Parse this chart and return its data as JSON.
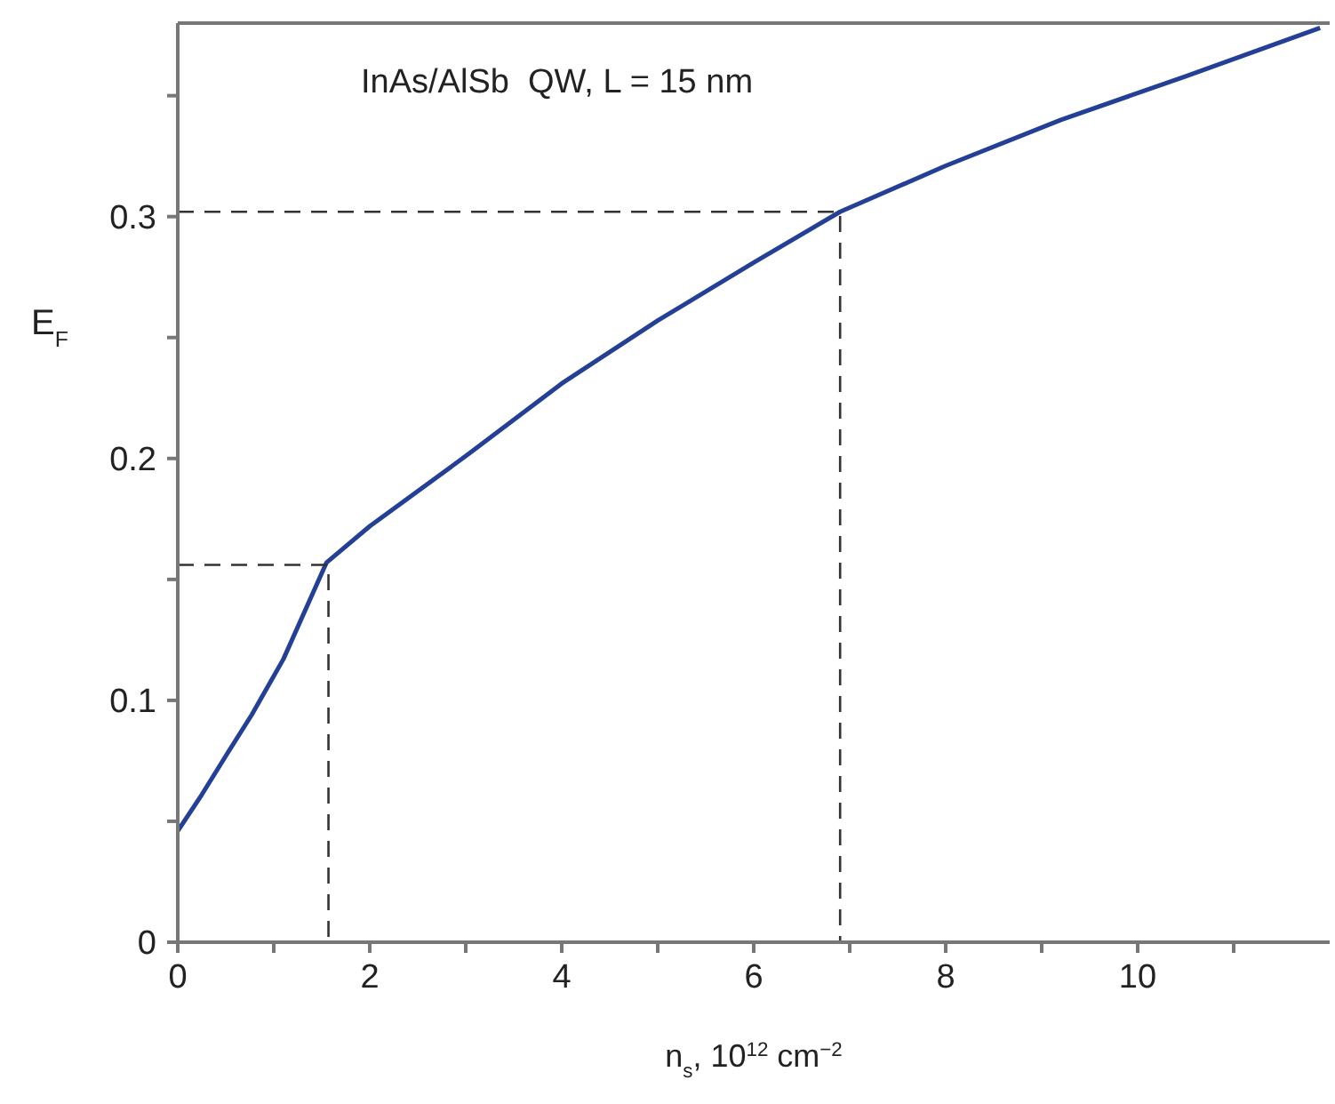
{
  "chart_data": {
    "type": "line",
    "xlabel": "n$_{s}$, 10$^{12}$ cm$^{−2}$",
    "ylabel": "E$_{F}$",
    "annotations": [
      "InAs/AlSb  QW, L = 15 nm"
    ],
    "xlim": [
      0,
      12
    ],
    "xticks": [
      0,
      2,
      4,
      6,
      8,
      10,
      {
        "value": 1,
        "label": null
      },
      {
        "value": 3,
        "label": null
      },
      {
        "value": 5,
        "label": null
      },
      {
        "value": 7,
        "label": null
      },
      {
        "value": 9,
        "label": null
      },
      {
        "value": 11,
        "label": null
      }
    ],
    "ylim": [
      0,
      0.38
    ],
    "yticks": [
      0,
      0.1,
      0.2,
      0.3,
      {
        "value": 0.05,
        "label": null
      },
      {
        "value": 0.15,
        "label": null
      },
      {
        "value": 0.25,
        "label": null
      },
      {
        "value": 0.35,
        "label": null
      }
    ],
    "grid": false,
    "marker": "none",
    "series": [
      {
        "color": "#233f96",
        "line_style": "solid",
        "x": [
          0,
          0.25,
          0.5,
          0.77,
          1.1,
          1.55,
          2,
          3,
          4,
          5,
          6,
          6.9,
          8,
          9.2,
          10.5,
          11.9
        ],
        "values": [
          0.046,
          0.061,
          0.077,
          0.094,
          0.117,
          0.157,
          0.172,
          0.201,
          0.231,
          0.257,
          0.281,
          0.302,
          0.321,
          0.34,
          0.358,
          0.378
        ]
      },
      {
        "color": "#333333",
        "line_style": "dashed",
        "x": [
          0,
          1.57,
          1.57
        ],
        "values": [
          0.156,
          0.156,
          0
        ]
      },
      {
        "color": "#333333",
        "line_style": "dashed",
        "x": [
          0,
          6.9,
          6.9
        ],
        "values": [
          0.302,
          0.302,
          0
        ]
      }
    ]
  }
}
